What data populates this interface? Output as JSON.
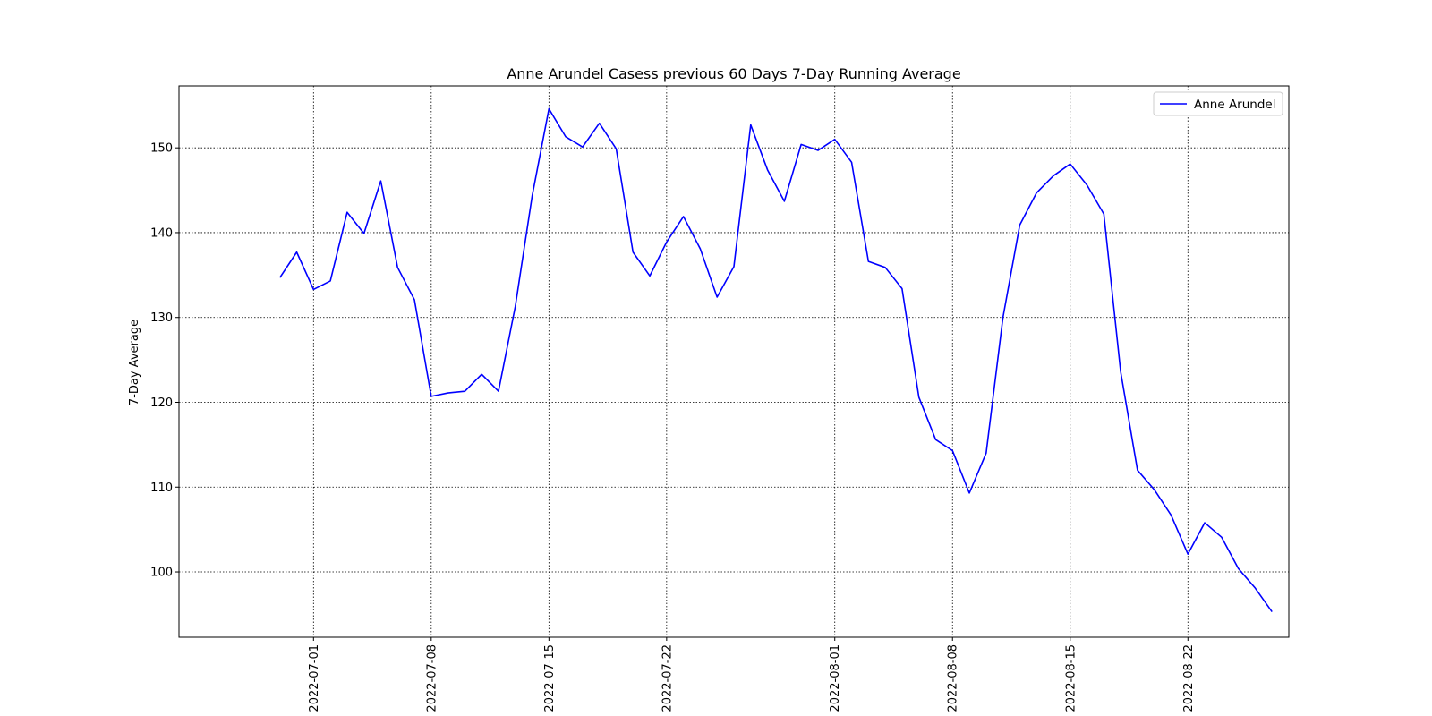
{
  "chart_data": {
    "type": "line",
    "title": "Anne Arundel Casess previous 60 Days 7-Day Running Average",
    "xlabel": "",
    "ylabel": "7-Day Average",
    "x_ticks": [
      "2022-07-01",
      "2022-07-08",
      "2022-07-15",
      "2022-07-22",
      "2022-08-01",
      "2022-08-08",
      "2022-08-15",
      "2022-08-22"
    ],
    "y_ticks": [
      100,
      110,
      120,
      130,
      140,
      150
    ],
    "xlim": [
      "2022-06-23",
      "2022-08-28"
    ],
    "ylim": [
      92.3,
      157.3
    ],
    "grid": true,
    "legend_position": "top-right",
    "series": [
      {
        "name": "Anne Arundel",
        "color": "#0000ff",
        "x": [
          "2022-06-29",
          "2022-06-30",
          "2022-07-01",
          "2022-07-02",
          "2022-07-03",
          "2022-07-04",
          "2022-07-05",
          "2022-07-06",
          "2022-07-07",
          "2022-07-08",
          "2022-07-09",
          "2022-07-10",
          "2022-07-11",
          "2022-07-12",
          "2022-07-13",
          "2022-07-14",
          "2022-07-15",
          "2022-07-16",
          "2022-07-17",
          "2022-07-18",
          "2022-07-19",
          "2022-07-20",
          "2022-07-21",
          "2022-07-22",
          "2022-07-23",
          "2022-07-24",
          "2022-07-25",
          "2022-07-26",
          "2022-07-27",
          "2022-07-28",
          "2022-07-29",
          "2022-07-30",
          "2022-07-31",
          "2022-08-01",
          "2022-08-02",
          "2022-08-03",
          "2022-08-04",
          "2022-08-05",
          "2022-08-06",
          "2022-08-07",
          "2022-08-08",
          "2022-08-09",
          "2022-08-10",
          "2022-08-11",
          "2022-08-12",
          "2022-08-13",
          "2022-08-14",
          "2022-08-15",
          "2022-08-16",
          "2022-08-17",
          "2022-08-18",
          "2022-08-19",
          "2022-08-20",
          "2022-08-21",
          "2022-08-22",
          "2022-08-23",
          "2022-08-24",
          "2022-08-25",
          "2022-08-26",
          "2022-08-27"
        ],
        "y": [
          134.7,
          137.7,
          133.3,
          134.3,
          142.4,
          139.9,
          146.1,
          135.9,
          132.1,
          120.7,
          121.1,
          121.3,
          123.3,
          121.3,
          131.3,
          144.3,
          154.6,
          151.3,
          150.1,
          152.9,
          149.9,
          137.7,
          134.9,
          138.9,
          141.9,
          138.1,
          132.4,
          136.0,
          152.7,
          147.4,
          143.7,
          150.4,
          149.7,
          151.0,
          148.3,
          136.6,
          135.9,
          133.4,
          120.6,
          115.6,
          114.3,
          109.3,
          114.0,
          130.0,
          140.9,
          144.7,
          146.7,
          148.1,
          145.6,
          142.2,
          123.6,
          112.0,
          109.7,
          106.7,
          102.1,
          105.8,
          104.1,
          100.4,
          98.1,
          95.3
        ]
      }
    ]
  }
}
